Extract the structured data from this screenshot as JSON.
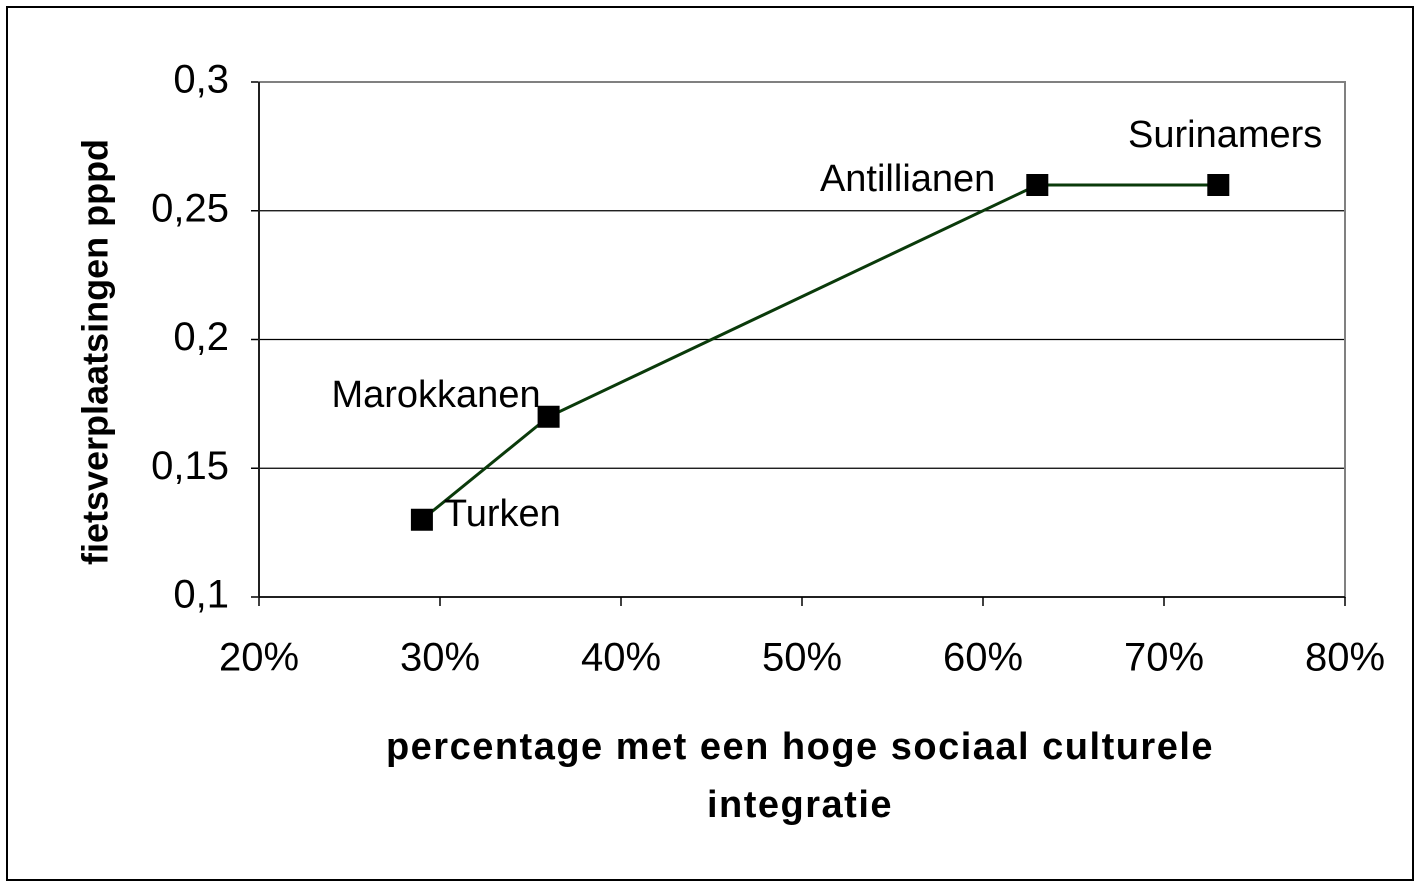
{
  "chart_data": {
    "type": "line",
    "xlabel": "percentage met een hoge sociaal culturele integratie",
    "ylabel": "fietsverplaatsingen pppd",
    "x": [
      29,
      36,
      63,
      73
    ],
    "series": [
      {
        "color": "#0a3a0a",
        "marker_color": "#000000",
        "values": [
          0.13,
          0.17,
          0.26,
          0.26
        ]
      }
    ],
    "point_labels": [
      "Turken",
      "Marokkanen",
      "Antillianen",
      "Surinamers"
    ],
    "xlim": [
      20,
      80
    ],
    "xticks": [
      {
        "value": 20,
        "label": "20%"
      },
      {
        "value": 30,
        "label": "30%"
      },
      {
        "value": 40,
        "label": "40%"
      },
      {
        "value": 50,
        "label": "50%"
      },
      {
        "value": 60,
        "label": "60%"
      },
      {
        "value": 70,
        "label": "70%"
      },
      {
        "value": 80,
        "label": "80%"
      }
    ],
    "ylim": [
      0.1,
      0.3
    ],
    "yticks": [
      {
        "value": 0.1,
        "label": "0,1"
      },
      {
        "value": 0.15,
        "label": "0,15"
      },
      {
        "value": 0.2,
        "label": "0,2"
      },
      {
        "value": 0.25,
        "label": "0,25"
      },
      {
        "value": 0.3,
        "label": "0,3"
      }
    ],
    "grid": true
  }
}
